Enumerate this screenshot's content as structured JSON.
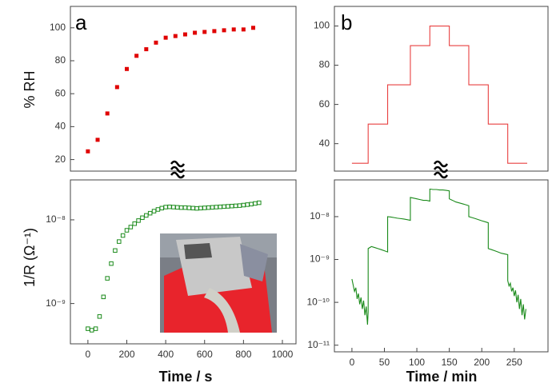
{
  "chart_data": [
    {
      "type": "scatter",
      "panel": "a",
      "ylabel": "% RH",
      "color": "#e00000",
      "marker": "square",
      "filled": true,
      "xlim": [
        -90,
        1070
      ],
      "ylim": [
        13,
        113
      ],
      "yticks": [
        20,
        40,
        60,
        80,
        100
      ],
      "x": [
        0,
        50,
        100,
        150,
        200,
        250,
        300,
        350,
        400,
        450,
        500,
        550,
        600,
        650,
        700,
        750,
        800,
        850
      ],
      "values": [
        25,
        32,
        48,
        64,
        75,
        83,
        87,
        91,
        94,
        95,
        96,
        97,
        97.5,
        98,
        98.5,
        99,
        99,
        100
      ]
    },
    {
      "type": "scatter",
      "ylabel": "1/R (Ω⁻¹)",
      "xlabel": "Time / s",
      "color": "#1a8a1a",
      "marker": "square",
      "filled": false,
      "log_y": true,
      "xlim": [
        -90,
        1070
      ],
      "ylim": [
        3.3e-10,
        3e-08
      ],
      "xticks": [
        0,
        200,
        400,
        600,
        800,
        1000
      ],
      "yticks": [
        {
          "value": 1e-09,
          "label": "10⁻⁹"
        },
        {
          "value": 1e-08,
          "label": "10⁻⁸"
        }
      ],
      "x": [
        0,
        20,
        40,
        60,
        80,
        100,
        120,
        140,
        160,
        180,
        200,
        220,
        240,
        260,
        280,
        300,
        320,
        340,
        360,
        380,
        400,
        420,
        440,
        460,
        480,
        500,
        520,
        540,
        560,
        580,
        600,
        620,
        640,
        660,
        680,
        700,
        720,
        740,
        760,
        780,
        800,
        820,
        840,
        860,
        880
      ],
      "values": [
        5e-10,
        4.8e-10,
        5e-10,
        7e-10,
        1.2e-09,
        2e-09,
        3e-09,
        4.3e-09,
        5.5e-09,
        6.5e-09,
        7.5e-09,
        8.2e-09,
        9e-09,
        9.8e-09,
        1.06e-08,
        1.13e-08,
        1.2e-08,
        1.27e-08,
        1.33e-08,
        1.38e-08,
        1.42e-08,
        1.43e-08,
        1.42e-08,
        1.41e-08,
        1.4e-08,
        1.4e-08,
        1.39e-08,
        1.38e-08,
        1.37e-08,
        1.38e-08,
        1.39e-08,
        1.4e-08,
        1.41e-08,
        1.42e-08,
        1.43e-08,
        1.44e-08,
        1.45e-08,
        1.46e-08,
        1.47e-08,
        1.48e-08,
        1.5e-08,
        1.52e-08,
        1.54e-08,
        1.57e-08,
        1.6e-08
      ]
    },
    {
      "type": "line",
      "panel": "b",
      "color": "#e84040",
      "xlim": [
        -27,
        302
      ],
      "ylim": [
        26,
        110
      ],
      "yticks": [
        40,
        60,
        80,
        100
      ],
      "x": [
        0,
        25,
        25,
        55,
        55,
        90,
        90,
        120,
        120,
        150,
        150,
        180,
        180,
        210,
        210,
        240,
        240,
        270
      ],
      "values": [
        30,
        30,
        50,
        50,
        70,
        70,
        90,
        90,
        100,
        100,
        90,
        90,
        70,
        70,
        50,
        50,
        30,
        30
      ]
    },
    {
      "type": "line",
      "xlabel": "Time / min",
      "color": "#1a8a1a",
      "log_y": true,
      "xlim": [
        -27,
        302
      ],
      "ylim": [
        7e-12,
        7.2e-08
      ],
      "xticks": [
        0,
        50,
        100,
        150,
        200,
        250
      ],
      "yticks": [
        {
          "value": 1e-11,
          "label": "10⁻¹¹"
        },
        {
          "value": 1e-10,
          "label": "10⁻¹⁰"
        },
        {
          "value": 1e-09,
          "label": "10⁻⁹"
        },
        {
          "value": 1e-08,
          "label": "10⁻⁸"
        }
      ],
      "x": [
        0,
        2,
        4,
        6,
        8,
        10,
        12,
        14,
        16,
        18,
        20,
        22,
        24,
        25,
        25,
        30,
        35,
        40,
        45,
        50,
        55,
        55,
        60,
        65,
        70,
        75,
        80,
        85,
        90,
        90,
        95,
        100,
        105,
        110,
        115,
        120,
        120,
        125,
        130,
        135,
        140,
        145,
        150,
        150,
        155,
        160,
        165,
        170,
        175,
        180,
        180,
        185,
        190,
        195,
        200,
        205,
        210,
        210,
        215,
        220,
        225,
        230,
        235,
        240,
        240,
        242,
        244,
        246,
        248,
        250,
        252,
        254,
        256,
        258,
        260,
        262,
        264,
        266,
        268
      ],
      "values": [
        3.5e-10,
        2.5e-10,
        1.8e-10,
        2.2e-10,
        1.2e-10,
        1.6e-10,
        9e-11,
        1.3e-10,
        7e-11,
        1.1e-10,
        5e-11,
        8e-11,
        3e-11,
        6e-11,
        1.8e-09,
        2e-09,
        1.9e-09,
        1.8e-09,
        1.7e-09,
        1.6e-09,
        1.5e-09,
        1e-08,
        9.8e-09,
        9.5e-09,
        9.2e-09,
        9e-09,
        8.8e-09,
        8.5e-09,
        8.2e-09,
        2.8e-08,
        2.7e-08,
        2.6e-08,
        2.5e-08,
        2.4e-08,
        2.4e-08,
        2.3e-08,
        4.4e-08,
        4.3e-08,
        4.3e-08,
        4.2e-08,
        4.2e-08,
        4.1e-08,
        4e-08,
        2.6e-08,
        2.4e-08,
        2.2e-08,
        2.1e-08,
        2e-08,
        1.9e-08,
        1.8e-08,
        1e-08,
        9.5e-09,
        9e-09,
        8.5e-09,
        8e-09,
        7.6e-09,
        7.2e-09,
        1.8e-09,
        1.7e-09,
        1.6e-09,
        1.5e-09,
        1.4e-09,
        1.35e-09,
        1.3e-09,
        3.2e-10,
        2.4e-10,
        2.8e-10,
        1.8e-10,
        2.2e-10,
        1.4e-10,
        1.9e-10,
        1e-10,
        1.5e-10,
        7e-11,
        1.2e-10,
        5e-11,
        9e-11,
        4e-11,
        7e-11
      ]
    }
  ]
}
